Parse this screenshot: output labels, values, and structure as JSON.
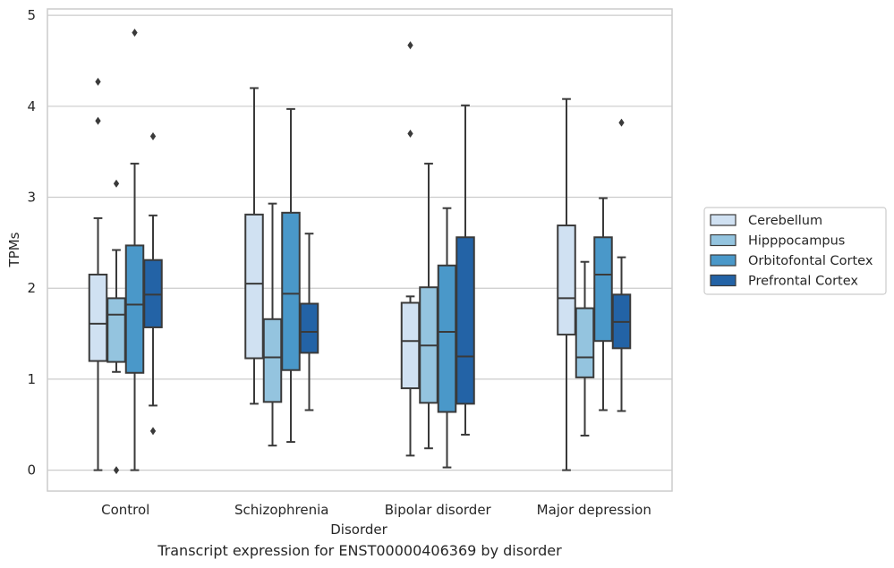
{
  "caption": "Transcript expression for ENST00000406369 by disorder",
  "chart_data": {
    "type": "box",
    "title": "",
    "xlabel": "Disorder",
    "ylabel": "TPMs",
    "ylim": [
      -0.23,
      5.07
    ],
    "yticks": [
      0,
      1,
      2,
      3,
      4,
      5
    ],
    "grid": true,
    "legend_position": "right",
    "categories": [
      "Control",
      "Schizophrenia",
      "Bipolar disorder",
      "Major depression"
    ],
    "series": [
      {
        "name": "Cerebellum",
        "color": "#d0e1f2",
        "boxes": [
          {
            "whisker_low": 0.0,
            "q1": 1.2,
            "median": 1.61,
            "q3": 2.15,
            "whisker_high": 2.77,
            "outliers": [
              3.84,
              4.27
            ]
          },
          {
            "whisker_low": 0.73,
            "q1": 1.23,
            "median": 2.05,
            "q3": 2.81,
            "whisker_high": 4.2,
            "outliers": []
          },
          {
            "whisker_low": 0.16,
            "q1": 0.9,
            "median": 1.42,
            "q3": 1.84,
            "whisker_high": 1.91,
            "outliers": [
              3.7,
              4.67
            ]
          },
          {
            "whisker_low": 0.0,
            "q1": 1.49,
            "median": 1.89,
            "q3": 2.69,
            "whisker_high": 4.08,
            "outliers": []
          }
        ]
      },
      {
        "name": "Hipppocampus",
        "color": "#94c4df",
        "boxes": [
          {
            "whisker_low": 1.08,
            "q1": 1.19,
            "median": 1.71,
            "q3": 1.89,
            "whisker_high": 2.42,
            "outliers": [
              0.0,
              3.15
            ]
          },
          {
            "whisker_low": 0.27,
            "q1": 0.75,
            "median": 1.24,
            "q3": 1.66,
            "whisker_high": 2.93,
            "outliers": []
          },
          {
            "whisker_low": 0.24,
            "q1": 0.74,
            "median": 1.37,
            "q3": 2.01,
            "whisker_high": 3.37,
            "outliers": []
          },
          {
            "whisker_low": 0.38,
            "q1": 1.02,
            "median": 1.24,
            "q3": 1.78,
            "whisker_high": 2.29,
            "outliers": []
          }
        ]
      },
      {
        "name": "Orbitofontal Cortex",
        "color": "#4a98c9",
        "boxes": [
          {
            "whisker_low": 0.0,
            "q1": 1.07,
            "median": 1.82,
            "q3": 2.47,
            "whisker_high": 3.37,
            "outliers": [
              4.81
            ]
          },
          {
            "whisker_low": 0.31,
            "q1": 1.1,
            "median": 1.94,
            "q3": 2.83,
            "whisker_high": 3.97,
            "outliers": []
          },
          {
            "whisker_low": 0.03,
            "q1": 0.64,
            "median": 1.52,
            "q3": 2.25,
            "whisker_high": 2.88,
            "outliers": []
          },
          {
            "whisker_low": 0.66,
            "q1": 1.42,
            "median": 2.15,
            "q3": 2.56,
            "whisker_high": 2.99,
            "outliers": []
          }
        ]
      },
      {
        "name": "Prefrontal Cortex",
        "color": "#2363a6",
        "boxes": [
          {
            "whisker_low": 0.71,
            "q1": 1.57,
            "median": 1.93,
            "q3": 2.31,
            "whisker_high": 2.8,
            "outliers": [
              0.43,
              3.67
            ]
          },
          {
            "whisker_low": 0.66,
            "q1": 1.29,
            "median": 1.52,
            "q3": 1.83,
            "whisker_high": 2.6,
            "outliers": []
          },
          {
            "whisker_low": 0.39,
            "q1": 0.73,
            "median": 1.25,
            "q3": 2.56,
            "whisker_high": 4.01,
            "outliers": []
          },
          {
            "whisker_low": 0.65,
            "q1": 1.34,
            "median": 1.63,
            "q3": 1.93,
            "whisker_high": 2.34,
            "outliers": [
              3.82
            ]
          }
        ]
      }
    ]
  }
}
